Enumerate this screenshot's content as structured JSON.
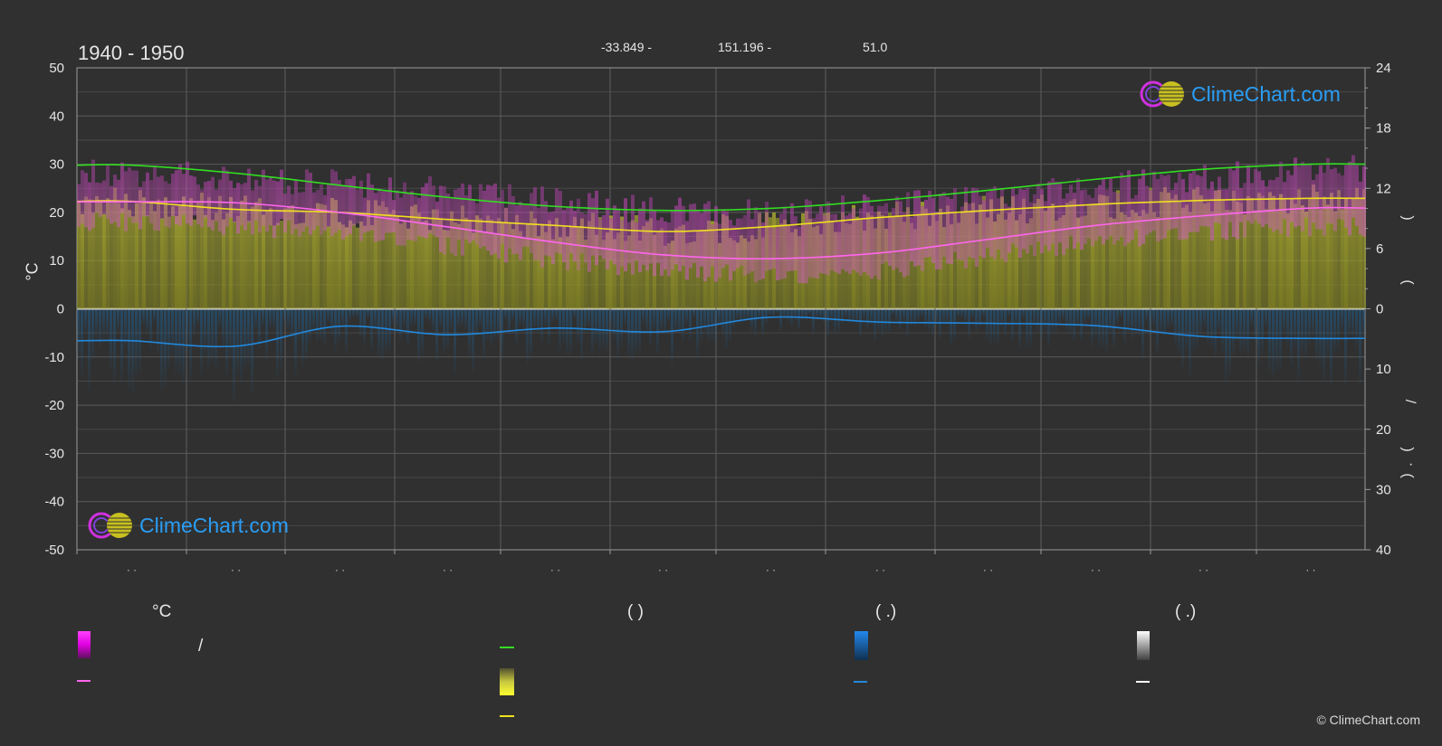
{
  "header": {
    "title": "1940 - 1950",
    "lat": "-33.849 -",
    "lon": "151.196 -",
    "elev": "51.0"
  },
  "left_axis_unit": "°C",
  "right_axis_marks": {
    "paren_top": ")",
    "paren_bottom": "(",
    "slash": "/",
    "paren_low_top": ")",
    "dot": "·",
    "paren_low_bottom": "("
  },
  "logo": {
    "text": "ClimeChart.com"
  },
  "month_placeholder": "· ·",
  "legend": {
    "col1_head": "°C",
    "col2_head": "(          )",
    "col3_head": "(    .)",
    "col4_head": "(    .)",
    "slash": "/"
  },
  "colors": {
    "sunshine": "#33dd22",
    "daylight_mean": "#f0e020",
    "temp_mean": "#ff66ee",
    "temp_range": "#e020e0",
    "precip": "#2288dd",
    "snow": "#ffffff",
    "accent": "#2a9df4"
  },
  "copyright": "© ClimeChart.com",
  "chart_data": {
    "type": "line",
    "x": [
      1,
      2,
      3,
      4,
      5,
      6,
      7,
      8,
      9,
      10,
      11,
      12
    ],
    "y_left_range": [
      -50,
      50
    ],
    "y_left_ticks": [
      50,
      40,
      30,
      20,
      10,
      0,
      -10,
      -20,
      -30,
      -40,
      -50
    ],
    "y_right_top_range": [
      0,
      24
    ],
    "y_right_top_ticks": [
      24,
      18,
      12,
      6,
      0
    ],
    "y_right_bottom_range": [
      0,
      40
    ],
    "y_right_bottom_ticks": [
      10,
      20,
      30,
      40
    ],
    "grid": true,
    "series": [
      {
        "key": "daylight",
        "values": [
          14.3,
          13.5,
          12.3,
          11.1,
          10.2,
          9.8,
          10.0,
          10.8,
          11.8,
          12.9,
          13.9,
          14.4
        ]
      },
      {
        "key": "sunshine",
        "values": [
          10.7,
          9.9,
          9.6,
          8.9,
          8.3,
          7.7,
          8.2,
          9.1,
          9.8,
          10.4,
          10.8,
          11.0
        ]
      },
      {
        "key": "temp_mean",
        "values": [
          22.2,
          22.0,
          20.0,
          17.0,
          13.8,
          11.2,
          10.4,
          11.6,
          14.4,
          17.3,
          19.3,
          20.9
        ]
      },
      {
        "key": "precip",
        "values": [
          5.3,
          6.2,
          2.9,
          4.3,
          3.2,
          3.8,
          1.4,
          2.2,
          2.4,
          2.8,
          4.6,
          4.9
        ]
      }
    ],
    "temp_band_upper": [
      27,
      26,
      25,
      23,
      21,
      19,
      18.5,
      20,
      22,
      24,
      26,
      28
    ],
    "temp_band_lower": [
      18,
      17,
      16,
      13,
      10,
      8,
      7,
      8,
      11,
      14,
      16,
      17
    ]
  }
}
